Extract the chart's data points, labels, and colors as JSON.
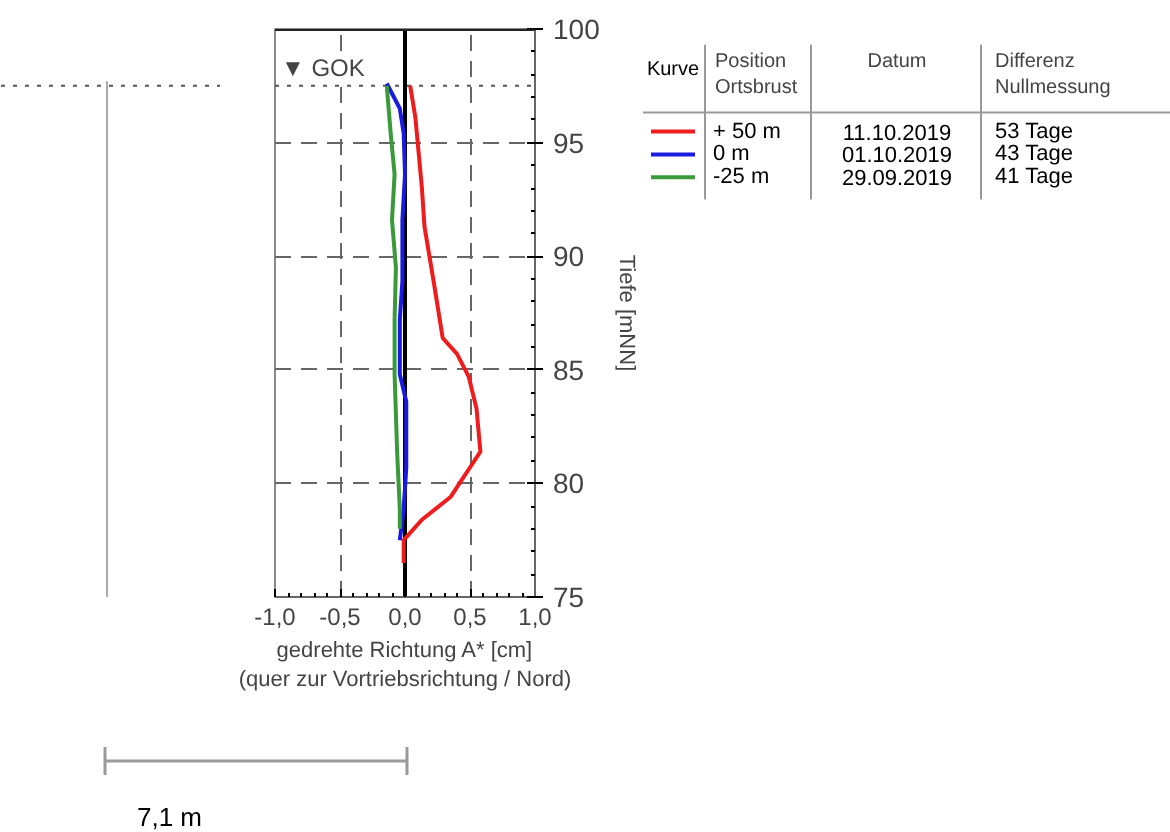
{
  "chart_data": {
    "type": "line",
    "xlabel": "gedrehte Richtung A* [cm]\n(quer zur Vortriebsrichtung / Nord)",
    "ylabel": "Tiefe [mNN]",
    "legend_title": "Kurve",
    "xlim": [
      -1,
      1
    ],
    "ylim": [
      75,
      100
    ],
    "xticks": [
      {
        "value": -1,
        "label": "-1,0"
      },
      {
        "value": -0.5,
        "label": "-0,5"
      },
      {
        "value": 0,
        "label": "0,0"
      },
      {
        "value": 0.5,
        "label": "0,5"
      },
      {
        "value": 1,
        "label": "1,0"
      }
    ],
    "yticks": [
      75,
      80,
      85,
      90,
      95,
      100
    ],
    "grid": true,
    "legend": "top right",
    "line_style": "solid",
    "marker": "none",
    "ref_lines": [
      {
        "axis": "x",
        "value": 0,
        "label": null,
        "color": "#000000",
        "line_style": "solid"
      },
      {
        "axis": "y",
        "value": 97.5,
        "label": "▼ GOK",
        "color": "#555555",
        "line_style": "dotted"
      }
    ],
    "series": [
      {
        "name": "+ 50 m",
        "color": "#ee1c1c",
        "x": [
          0.04,
          0.08,
          0.13,
          0.15,
          0.22,
          0.29,
          0.4,
          0.49,
          0.55,
          0.58,
          0.5,
          0.43,
          0.35,
          0.13,
          -0.01,
          -0.01
        ],
        "values": [
          97.5,
          96.1,
          93.0,
          91.3,
          88.9,
          86.4,
          85.7,
          84.7,
          83.3,
          81.4,
          80.7,
          80.1,
          79.4,
          78.4,
          77.5,
          76.5
        ]
      },
      {
        "name": "0 m",
        "color": "#1a1ae0",
        "x": [
          -0.14,
          -0.04,
          -0.01,
          0,
          -0.02,
          -0.02,
          -0.04,
          -0.04,
          0.01,
          0.01,
          -0.01,
          -0.04
        ],
        "values": [
          97.6,
          96.5,
          95.4,
          93.6,
          91.6,
          88.9,
          87.2,
          84.8,
          83.6,
          80.7,
          78.9,
          77.5
        ]
      },
      {
        "name": "-25 m",
        "color": "#3a9a3a",
        "x": [
          -0.14,
          -0.11,
          -0.08,
          -0.1,
          -0.07,
          -0.08,
          -0.08,
          -0.06,
          -0.04,
          -0.04
        ],
        "values": [
          97.5,
          95.4,
          93.6,
          91.6,
          89.5,
          87.2,
          84.8,
          81.3,
          78.9,
          78.0
        ]
      }
    ],
    "annotations": [
      "Position\nOrtsbrust",
      "Datum",
      "Differenz\nNullmessung",
      "11.10.2019",
      "53 Tage",
      "01.10.2019",
      "43 Tage",
      "29.09.2019",
      "41 Tage",
      "7,1 m"
    ]
  }
}
